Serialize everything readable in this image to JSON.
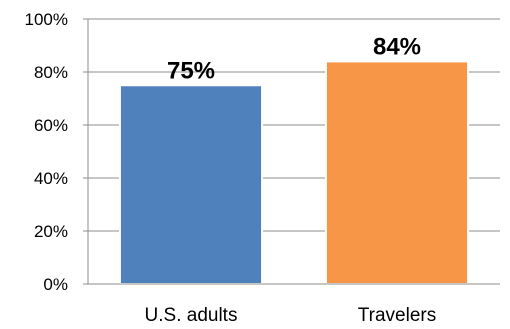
{
  "chart_data": {
    "type": "bar",
    "title": "",
    "xlabel": "",
    "ylabel": "",
    "categories": [
      "U.S. adults",
      "Travelers"
    ],
    "values": [
      75,
      84
    ],
    "data_labels": [
      "75%",
      "84%"
    ],
    "ylim": [
      0,
      100
    ],
    "yticks": [
      0,
      20,
      40,
      60,
      80,
      100
    ],
    "ytick_labels": [
      "0%",
      "20%",
      "40%",
      "60%",
      "80%",
      "100%"
    ],
    "grid": true,
    "legend": "none",
    "colors": [
      "#4f81bd",
      "#f79646"
    ],
    "bar_edge_colors": [
      "#ffffff",
      "#ffffff"
    ]
  }
}
